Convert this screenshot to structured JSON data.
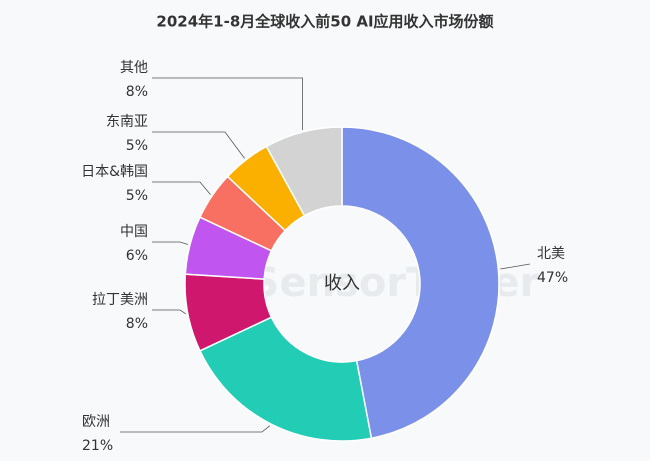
{
  "chart_data": {
    "type": "donut",
    "title": "2024年1-8月全球收入前50 AI应用收入市场份额",
    "center_label": "收入",
    "watermark": "SensorTower",
    "categories": [
      "北美",
      "欧洲",
      "拉丁美洲",
      "中国",
      "日本&韩国",
      "东南亚",
      "其他"
    ],
    "values": [
      47,
      21,
      8,
      6,
      5,
      5,
      8
    ],
    "value_labels": [
      "47%",
      "21%",
      "8%",
      "6%",
      "5%",
      "5%",
      "8%"
    ],
    "colors": [
      "#7b90e8",
      "#22ccb5",
      "#d0176e",
      "#c055f0",
      "#f87062",
      "#fbb000",
      "#d3d3d3"
    ]
  }
}
